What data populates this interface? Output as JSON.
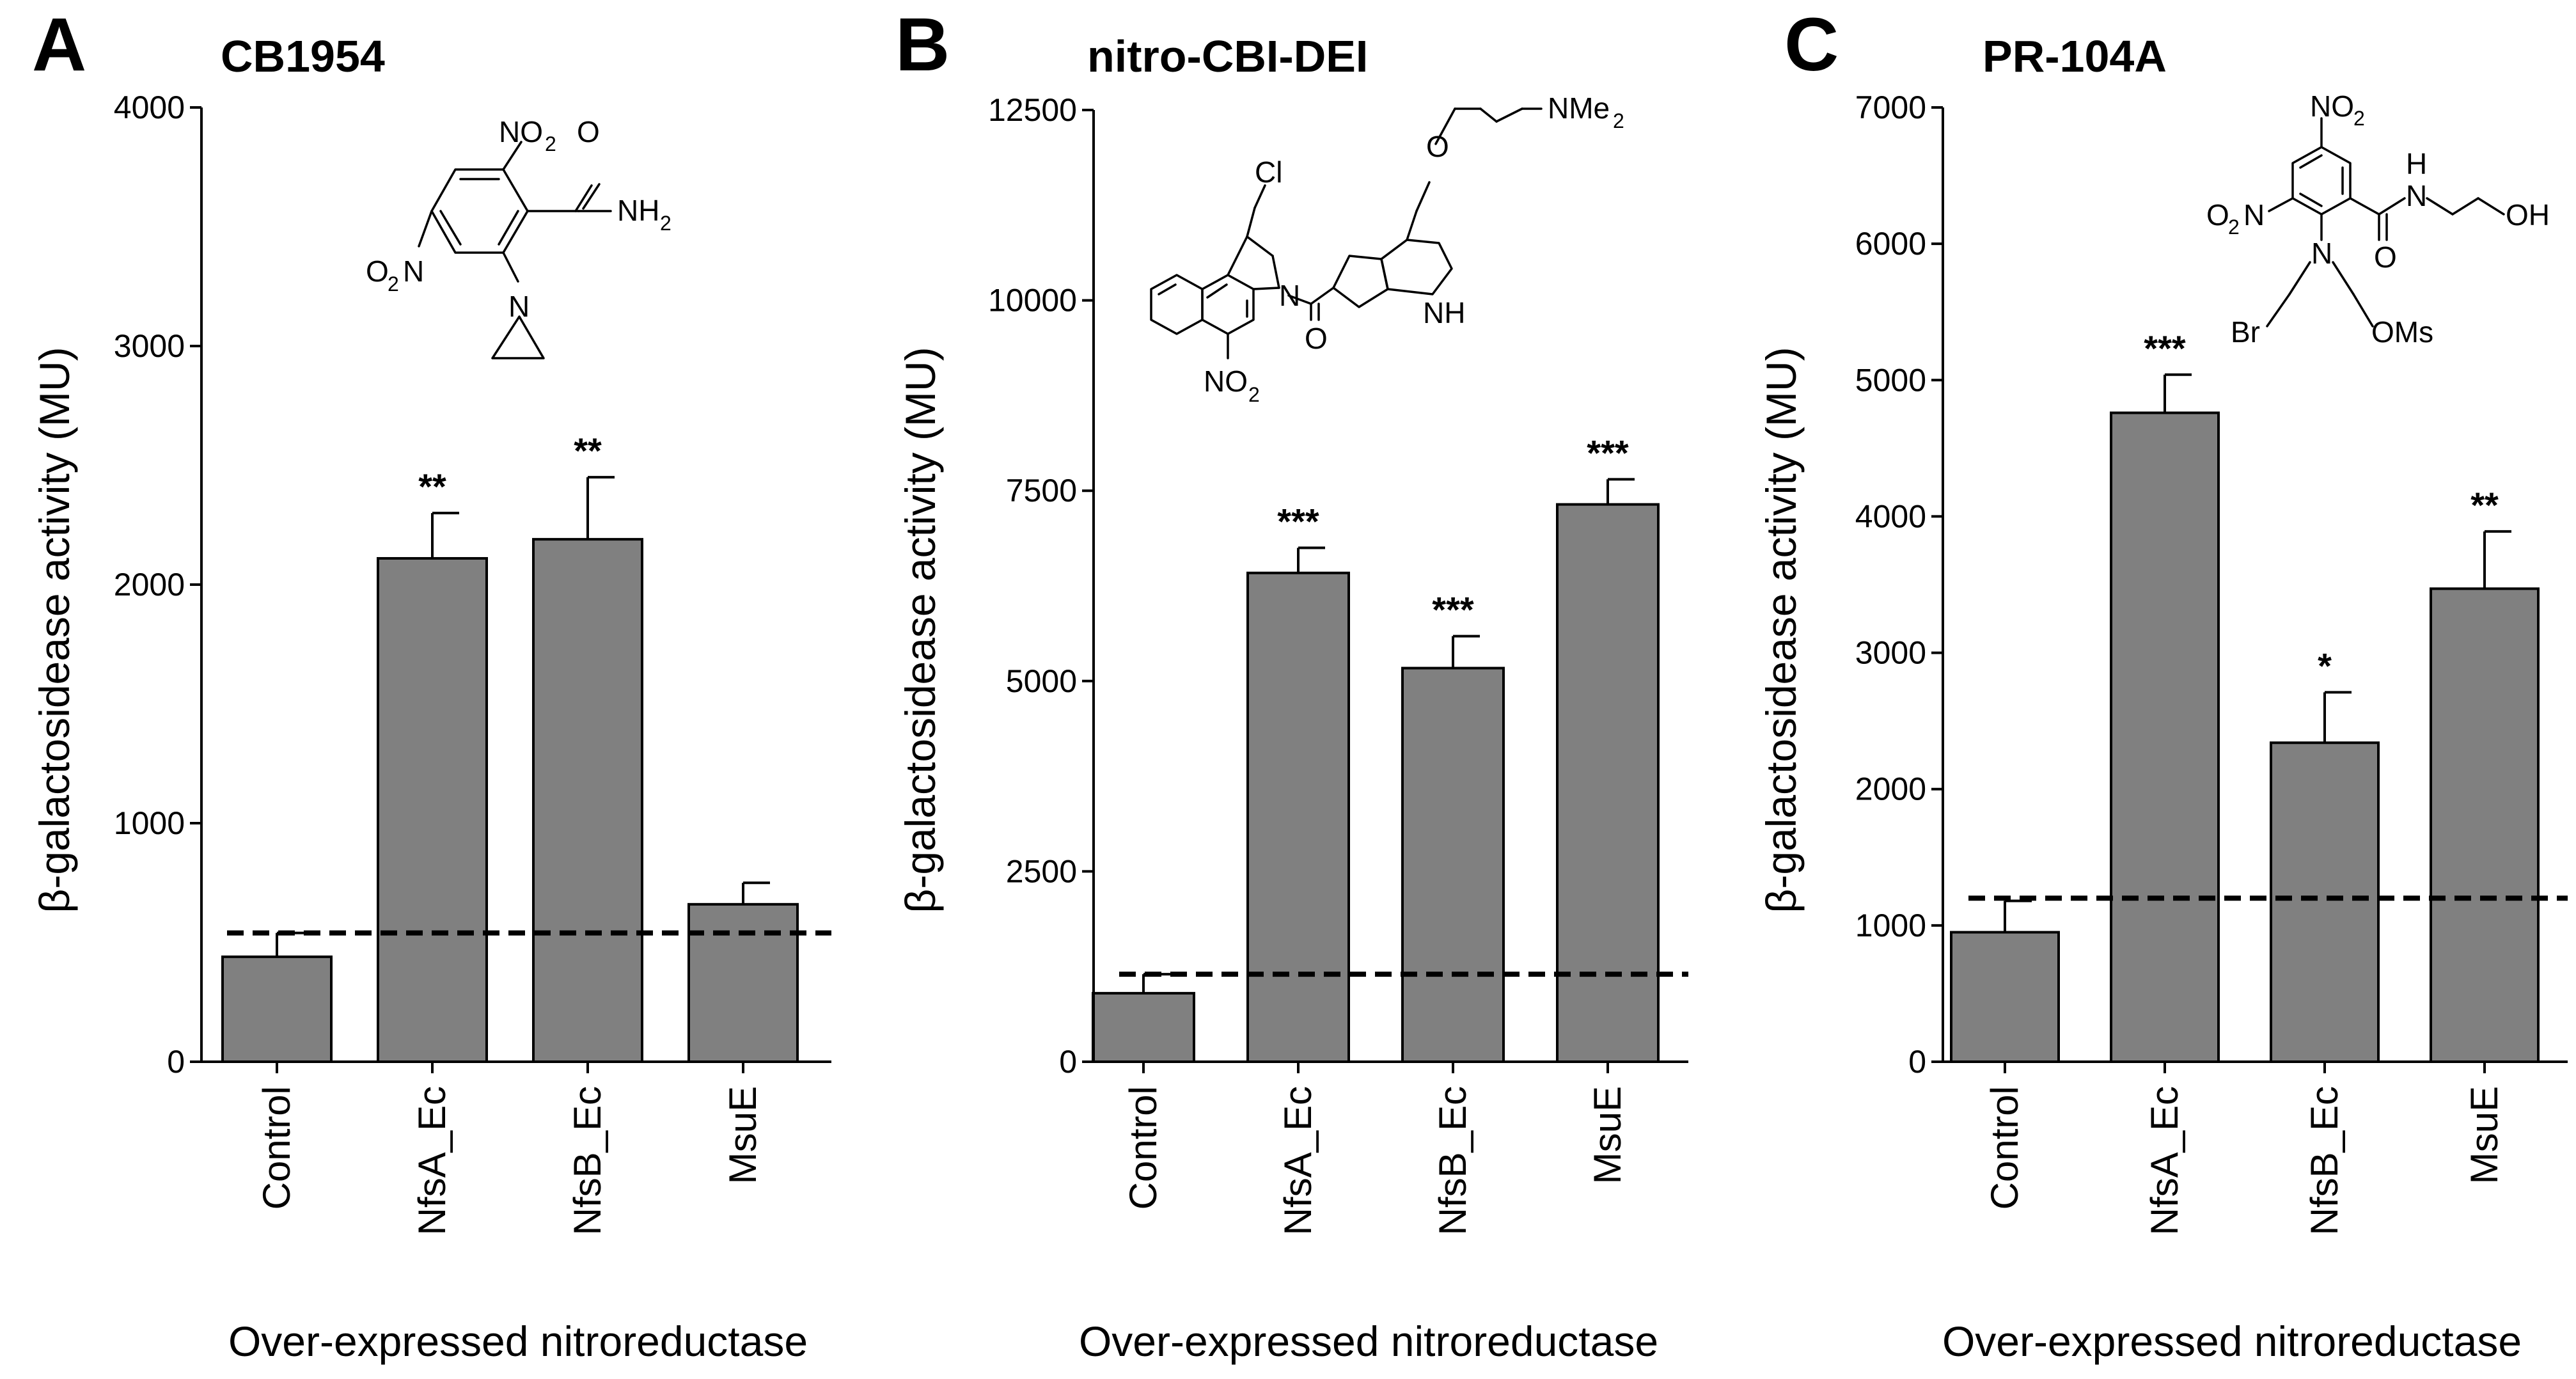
{
  "chart_data": [
    {
      "type": "bar",
      "panel": "A",
      "title": "CB1954",
      "ylabel": "β-galactosidease activity (MU)",
      "xlabel": "Over-expressed nitroreductase",
      "ylim": [
        0,
        4000
      ],
      "yticks": [
        0,
        1000,
        2000,
        3000,
        4000
      ],
      "ytick_labels": [
        "0",
        "1000",
        "2000",
        "3000",
        "4000"
      ],
      "categories": [
        "Control",
        "NfsA_Ec",
        "NfsB_Ec",
        "MsuE"
      ],
      "values": [
        440,
        2110,
        2190,
        660
      ],
      "errors": [
        100,
        190,
        260,
        90
      ],
      "significance": [
        "",
        "**",
        "**",
        ""
      ],
      "threshold": 540,
      "structure": "CB1954",
      "structure_labels": {
        "no2_top": "NO",
        "no2_top_sub": "2",
        "carbonyl_o": "O",
        "amide": "NH",
        "amide_sub": "2",
        "no2_left": "O",
        "no2_left_sub": "2",
        "no2_left_n": "N",
        "aziridine_n": "N"
      }
    },
    {
      "type": "bar",
      "panel": "B",
      "title": "nitro-CBI-DEI",
      "ylabel": "β-galactosidease activity (MU)",
      "xlabel": "Over-expressed nitroreductase",
      "ylim": [
        0,
        12500
      ],
      "yticks": [
        0,
        2500,
        5000,
        7500,
        10000,
        12500
      ],
      "ytick_labels": [
        "0",
        "2500",
        "5000",
        "7500",
        "10000",
        "12500"
      ],
      "categories": [
        "Control",
        "NfsA_Ec",
        "NfsB_Ec",
        "MsuE"
      ],
      "values": [
        900,
        6420,
        5170,
        7320
      ],
      "errors": [
        250,
        330,
        420,
        330
      ],
      "significance": [
        "",
        "***",
        "***",
        "***"
      ],
      "threshold": 1150,
      "structure": "nitro-CBI-DEI",
      "structure_labels": {
        "cl": "Cl",
        "n_ring": "N",
        "no2": "NO",
        "no2_sub": "2",
        "carbonyl_o": "O",
        "nh": "NH",
        "ether_o": "O",
        "nme": "NMe",
        "nme_sub": "2"
      }
    },
    {
      "type": "bar",
      "panel": "C",
      "title": "PR-104A",
      "ylabel": "β-galactosidease activity (MU)",
      "xlabel": "Over-expressed nitroreductase",
      "ylim": [
        0,
        7000
      ],
      "yticks": [
        0,
        1000,
        2000,
        3000,
        4000,
        5000,
        6000,
        7000
      ],
      "ytick_labels": [
        "0",
        "1000",
        "2000",
        "3000",
        "4000",
        "5000",
        "6000",
        "7000"
      ],
      "categories": [
        "Control",
        "NfsA_Ec",
        "NfsB_Ec",
        "MsuE"
      ],
      "values": [
        950,
        4760,
        2340,
        3470
      ],
      "errors": [
        230,
        280,
        370,
        420
      ],
      "significance": [
        "",
        "***",
        "*",
        "**"
      ],
      "threshold": 1200,
      "structure": "PR-104A",
      "structure_labels": {
        "no2_top": "NO",
        "no2_top_sub": "2",
        "no2_left": "O",
        "no2_left_sub": "2",
        "no2_left_n": "N",
        "n_center": "N",
        "carbonyl_o": "O",
        "amide_h": "H",
        "amide_n": "N",
        "oh": "OH",
        "br": "Br",
        "oms": "OMs"
      }
    }
  ],
  "colors": {
    "bar": "#808080",
    "bar_edge": "#000000",
    "axis": "#000000",
    "threshold": "#000000"
  }
}
